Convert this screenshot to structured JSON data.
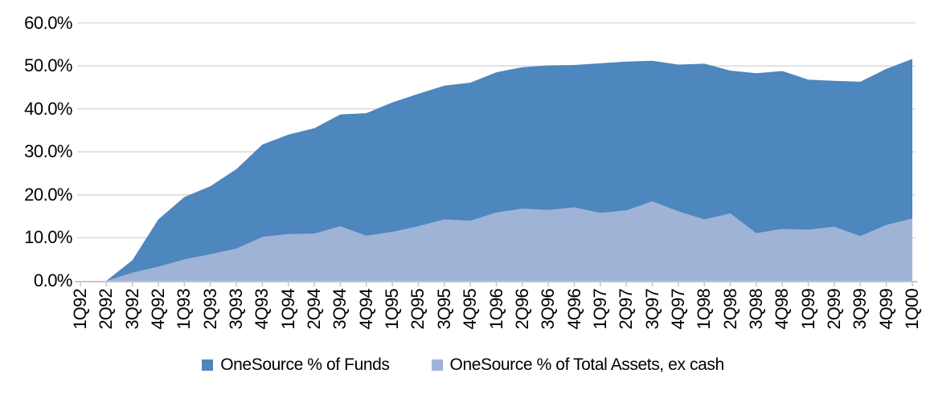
{
  "chart_data": {
    "type": "area",
    "mode": "overlaid",
    "title": "",
    "xlabel": "",
    "ylabel": "",
    "ylim": [
      0,
      60
    ],
    "grid": "horizontal",
    "legend_position": "bottom",
    "x_tick_rotation": -90,
    "y_ticks": [
      "0.0%",
      "10.0%",
      "20.0%",
      "30.0%",
      "40.0%",
      "50.0%",
      "60.0%"
    ],
    "categories": [
      "1Q92",
      "2Q92",
      "3Q92",
      "4Q92",
      "1Q93",
      "2Q93",
      "3Q93",
      "4Q93",
      "1Q94",
      "2Q94",
      "3Q94",
      "4Q94",
      "1Q95",
      "2Q95",
      "3Q95",
      "4Q95",
      "1Q96",
      "2Q96",
      "3Q96",
      "4Q96",
      "1Q97",
      "2Q97",
      "3Q97",
      "4Q97",
      "1Q98",
      "2Q98",
      "3Q98",
      "4Q98",
      "1Q99",
      "2Q99",
      "3Q99",
      "4Q99",
      "1Q00"
    ],
    "series": [
      {
        "name": "OneSource % of Funds",
        "color": "#4E86BE",
        "values": [
          0.0,
          0.0,
          4.8,
          14.3,
          19.5,
          22.0,
          26.0,
          31.7,
          34.0,
          35.5,
          38.7,
          39.0,
          41.5,
          43.5,
          45.4,
          46.1,
          48.5,
          49.7,
          50.1,
          50.2,
          50.6,
          51.0,
          51.2,
          50.3,
          50.5,
          48.9,
          48.3,
          48.8,
          46.8,
          46.5,
          46.3,
          49.3,
          51.6
        ]
      },
      {
        "name": "OneSource % of Total Assets, ex cash",
        "color": "#9FB3D7",
        "values": [
          0.0,
          0.0,
          1.9,
          3.3,
          5.0,
          6.2,
          7.5,
          10.2,
          10.9,
          11.0,
          12.7,
          10.5,
          11.4,
          12.7,
          14.3,
          14.0,
          15.9,
          16.8,
          16.5,
          17.1,
          15.8,
          16.4,
          18.5,
          16.2,
          14.3,
          15.7,
          11.1,
          12.1,
          11.9,
          12.6,
          10.4,
          13.0,
          14.5
        ]
      }
    ],
    "colors": {
      "gridline": "#D9D9D9",
      "axis": "#C6C6C6",
      "text": "#000000",
      "background": "#FFFFFF"
    }
  }
}
